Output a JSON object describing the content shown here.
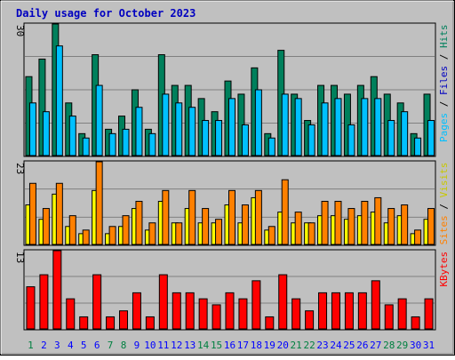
{
  "title": "Daily usage for October 2023",
  "colors": {
    "background": "#c0c0c0",
    "title": "#0000c0",
    "hits_fill": "#00805c",
    "files_fill": "#00c0ff",
    "visits_fill": "#ffff00",
    "sites_fill": "#ff8000",
    "kbytes_fill": "#ff0000",
    "weekend_day_label": "#008040",
    "weekday_day_label": "#0000ff"
  },
  "chart_data": [
    {
      "type": "bar",
      "panel": "hits-pages-files",
      "x": [
        1,
        2,
        3,
        4,
        5,
        6,
        7,
        8,
        9,
        10,
        11,
        12,
        13,
        14,
        15,
        16,
        17,
        18,
        19,
        20,
        21,
        22,
        23,
        24,
        25,
        26,
        27,
        28,
        29,
        30,
        31
      ],
      "ylim": [
        0,
        30
      ],
      "max_tick": "30",
      "legend": [
        "Pages",
        "Files",
        "Hits"
      ],
      "series": [
        {
          "name": "Hits",
          "values": [
            18,
            22,
            30,
            12,
            5,
            23,
            6,
            9,
            15,
            6,
            23,
            16,
            16,
            13,
            10,
            17,
            14,
            20,
            5,
            24,
            14,
            8,
            16,
            16,
            14,
            16,
            18,
            14,
            12,
            5,
            14
          ]
        },
        {
          "name": "Files",
          "values": [
            12,
            10,
            25,
            9,
            4,
            16,
            5,
            6,
            11,
            5,
            14,
            12,
            11,
            8,
            8,
            13,
            7,
            15,
            4,
            14,
            13,
            7,
            12,
            13,
            7,
            13,
            13,
            8,
            10,
            4,
            8
          ]
        },
        {
          "name": "Pages",
          "values": [
            0,
            0,
            0,
            0,
            0,
            0,
            0,
            0,
            0,
            0,
            0,
            0,
            0,
            0,
            0,
            0,
            0,
            0,
            0,
            0,
            0,
            0,
            0,
            0,
            0,
            0,
            0,
            0,
            0,
            0,
            0
          ]
        }
      ]
    },
    {
      "type": "bar",
      "panel": "visits-sites",
      "x": [
        1,
        2,
        3,
        4,
        5,
        6,
        7,
        8,
        9,
        10,
        11,
        12,
        13,
        14,
        15,
        16,
        17,
        18,
        19,
        20,
        21,
        22,
        23,
        24,
        25,
        26,
        27,
        28,
        29,
        30,
        31
      ],
      "ylim": [
        0,
        23
      ],
      "max_tick": "23",
      "legend": [
        "Sites",
        "Visits"
      ],
      "series": [
        {
          "name": "Visits",
          "values": [
            11,
            7,
            14,
            5,
            3,
            15,
            3,
            5,
            10,
            4,
            12,
            6,
            10,
            6,
            6,
            11,
            6,
            13,
            4,
            9,
            6,
            6,
            8,
            8,
            7,
            8,
            9,
            6,
            8,
            3,
            7
          ]
        },
        {
          "name": "Sites",
          "values": [
            17,
            10,
            17,
            8,
            4,
            23,
            5,
            8,
            12,
            6,
            15,
            6,
            15,
            10,
            7,
            15,
            11,
            15,
            5,
            18,
            9,
            6,
            12,
            12,
            10,
            12,
            13,
            10,
            11,
            4,
            10
          ]
        }
      ]
    },
    {
      "type": "bar",
      "panel": "kbytes",
      "x": [
        1,
        2,
        3,
        4,
        5,
        6,
        7,
        8,
        9,
        10,
        11,
        12,
        13,
        14,
        15,
        16,
        17,
        18,
        19,
        20,
        21,
        22,
        23,
        24,
        25,
        26,
        27,
        28,
        29,
        30,
        31
      ],
      "ylim": [
        0,
        13
      ],
      "max_tick": "13",
      "legend": [
        "KBytes"
      ],
      "series": [
        {
          "name": "KBytes",
          "values": [
            7,
            9,
            13,
            5,
            2,
            9,
            2,
            3,
            6,
            2,
            9,
            6,
            6,
            5,
            4,
            6,
            5,
            8,
            2,
            9,
            5,
            3,
            6,
            6,
            6,
            6,
            8,
            4,
            5,
            2,
            5
          ]
        }
      ]
    }
  ],
  "weekend_days": [
    1,
    7,
    8,
    14,
    15,
    21,
    22,
    28,
    29
  ]
}
